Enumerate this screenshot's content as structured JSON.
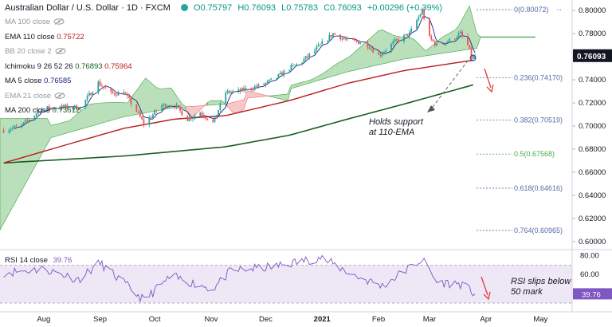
{
  "header": {
    "title": "Australian Dollar / U.S. Dollar · 1D · FXCM",
    "open": "O0.75797",
    "high": "H0.76093",
    "low": "L0.75783",
    "close": "C0.76093",
    "change": "+0.00296 (+0.39%)"
  },
  "indicators": [
    {
      "label": "MA 100 close",
      "values": [],
      "hidden": true
    },
    {
      "label": "EMA 110 close",
      "values": [
        {
          "text": "0.75722",
          "color": "#b71c1c"
        }
      ],
      "hidden": false
    },
    {
      "label": "BB 20 close 2",
      "values": [],
      "hidden": true
    },
    {
      "label": "Ichimoku 9 26 52 26",
      "values": [
        {
          "text": "0.76893",
          "color": "#1b5e20"
        },
        {
          "text": "0.75964",
          "color": "#b71c1c"
        }
      ],
      "hidden": false
    },
    {
      "label": "MA 5 close",
      "values": [
        {
          "text": "0.76585",
          "color": "#1a237e"
        }
      ],
      "hidden": false
    },
    {
      "label": "EMA 21 close",
      "values": [],
      "hidden": true
    },
    {
      "label": "MA 200 close",
      "values": [
        {
          "text": "0.73612",
          "color": "#1b5e20"
        }
      ],
      "hidden": false
    }
  ],
  "rsi": {
    "label": "RSI 14 close",
    "value": "39.76"
  },
  "price_axis": [
    "0.80000",
    "0.78000",
    "0.76000",
    "0.74000",
    "0.72000",
    "0.70000",
    "0.68000",
    "0.66000",
    "0.64000",
    "0.62000",
    "0.60000"
  ],
  "rsi_axis": [
    "80.00",
    "60.00",
    "40.00"
  ],
  "current_price": "0.76093",
  "x_axis": [
    "Aug",
    "Sep",
    "Oct",
    "Nov",
    "Dec",
    "2021",
    "Feb",
    "Mar",
    "Apr",
    "May"
  ],
  "fib_levels": [
    {
      "label": "0(0.80072)",
      "value": 0.80072,
      "color": "#5b6aa8"
    },
    {
      "label": "0.236(0.74170)",
      "value": 0.7417,
      "color": "#5b6aa8"
    },
    {
      "label": "0.382(0.70519)",
      "value": 0.70519,
      "color": "#5b6aa8"
    },
    {
      "label": "0.5(0.67568)",
      "value": 0.67568,
      "color": "#4caf50"
    },
    {
      "label": "0.618(0.64616)",
      "value": 0.64616,
      "color": "#5b6aa8"
    },
    {
      "label": "0.764(0.60965)",
      "value": 0.60965,
      "color": "#5b6aa8"
    }
  ],
  "annotations": {
    "support_line1": "Holds support",
    "support_line2": "at 110-EMA",
    "rsi_line1": "RSI slips below",
    "rsi_line2": "50 mark"
  },
  "colors": {
    "up": "#26a69a",
    "down": "#ef5350",
    "ema110": "#b71c1c",
    "ma200": "#1b5e20",
    "ma5": "#1a237e",
    "cloud_bull": "#81c784",
    "cloud_bear": "#ef9a9a",
    "rsi_line": "#7e57c2",
    "rsi_band": "#ede7f6",
    "arrow": "#e53935"
  },
  "chart_data": {
    "type": "candlestick",
    "symbol": "AUDUSD",
    "timeframe": "1D",
    "ylim": [
      0.595,
      0.805
    ],
    "rsi_ylim": [
      25,
      82
    ],
    "close_path": [
      {
        "date": "2020-07-10",
        "close": 0.6965
      },
      {
        "date": "2020-07-20",
        "close": 0.7005
      },
      {
        "date": "2020-07-31",
        "close": 0.715
      },
      {
        "date": "2020-08-07",
        "close": 0.716
      },
      {
        "date": "2020-08-14",
        "close": 0.7165
      },
      {
        "date": "2020-08-21",
        "close": 0.716
      },
      {
        "date": "2020-08-31",
        "close": 0.7375
      },
      {
        "date": "2020-09-07",
        "close": 0.728
      },
      {
        "date": "2020-09-14",
        "close": 0.729
      },
      {
        "date": "2020-09-21",
        "close": 0.713
      },
      {
        "date": "2020-09-25",
        "close": 0.702
      },
      {
        "date": "2020-10-05",
        "close": 0.718
      },
      {
        "date": "2020-10-12",
        "close": 0.718
      },
      {
        "date": "2020-10-19",
        "close": 0.706
      },
      {
        "date": "2020-10-26",
        "close": 0.712
      },
      {
        "date": "2020-11-02",
        "close": 0.703
      },
      {
        "date": "2020-11-09",
        "close": 0.729
      },
      {
        "date": "2020-11-16",
        "close": 0.73
      },
      {
        "date": "2020-11-30",
        "close": 0.736
      },
      {
        "date": "2020-12-07",
        "close": 0.742
      },
      {
        "date": "2020-12-14",
        "close": 0.75
      },
      {
        "date": "2020-12-21",
        "close": 0.756
      },
      {
        "date": "2020-12-31",
        "close": 0.77
      },
      {
        "date": "2021-01-07",
        "close": 0.78
      },
      {
        "date": "2021-01-15",
        "close": 0.774
      },
      {
        "date": "2021-01-25",
        "close": 0.772
      },
      {
        "date": "2021-02-01",
        "close": 0.761
      },
      {
        "date": "2021-02-10",
        "close": 0.773
      },
      {
        "date": "2021-02-18",
        "close": 0.78
      },
      {
        "date": "2021-02-25",
        "close": 0.8
      },
      {
        "date": "2021-03-01",
        "close": 0.776
      },
      {
        "date": "2021-03-05",
        "close": 0.77
      },
      {
        "date": "2021-03-12",
        "close": 0.774
      },
      {
        "date": "2021-03-18",
        "close": 0.78
      },
      {
        "date": "2021-03-22",
        "close": 0.77
      },
      {
        "date": "2021-03-24",
        "close": 0.759
      },
      {
        "date": "2021-03-26",
        "close": 0.7609
      }
    ],
    "ema110": [
      {
        "date": "2020-07-10",
        "value": 0.668
      },
      {
        "date": "2020-08-14",
        "value": 0.684
      },
      {
        "date": "2020-09-14",
        "value": 0.698
      },
      {
        "date": "2020-10-12",
        "value": 0.706
      },
      {
        "date": "2020-11-09",
        "value": 0.709
      },
      {
        "date": "2020-12-14",
        "value": 0.722
      },
      {
        "date": "2021-01-15",
        "value": 0.737
      },
      {
        "date": "2021-02-15",
        "value": 0.748
      },
      {
        "date": "2021-03-26",
        "value": 0.7572
      }
    ],
    "ma200": [
      {
        "date": "2020-07-10",
        "value": 0.668
      },
      {
        "date": "2020-09-14",
        "value": 0.674
      },
      {
        "date": "2020-11-09",
        "value": 0.682
      },
      {
        "date": "2020-12-14",
        "value": 0.692
      },
      {
        "date": "2021-01-15",
        "value": 0.706
      },
      {
        "date": "2021-02-15",
        "value": 0.719
      },
      {
        "date": "2021-03-26",
        "value": 0.7361
      }
    ],
    "rsi14": [
      {
        "date": "2020-07-10",
        "value": 62
      },
      {
        "date": "2020-08-01",
        "value": 66
      },
      {
        "date": "2020-08-20",
        "value": 55
      },
      {
        "date": "2020-09-01",
        "value": 72
      },
      {
        "date": "2020-09-25",
        "value": 33
      },
      {
        "date": "2020-10-10",
        "value": 58
      },
      {
        "date": "2020-11-02",
        "value": 45
      },
      {
        "date": "2020-11-12",
        "value": 64
      },
      {
        "date": "2020-12-05",
        "value": 68
      },
      {
        "date": "2020-12-31",
        "value": 78
      },
      {
        "date": "2021-01-20",
        "value": 58
      },
      {
        "date": "2021-02-03",
        "value": 48
      },
      {
        "date": "2021-02-25",
        "value": 76
      },
      {
        "date": "2021-03-05",
        "value": 52
      },
      {
        "date": "2021-03-18",
        "value": 50
      },
      {
        "date": "2021-03-26",
        "value": 39.76
      }
    ]
  }
}
